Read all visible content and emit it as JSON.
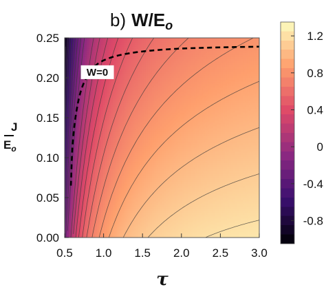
{
  "chart_data": {
    "type": "heatmap",
    "subtype": "contour",
    "title_prefix": "b)",
    "title_main": "W/E",
    "title_sub": "o",
    "xlabel": "τ",
    "ylabel_top": "J",
    "ylabel_bottom_main": "E",
    "ylabel_bottom_sub": "o",
    "xlim": [
      0.5,
      3.0
    ],
    "ylim": [
      0.0,
      0.25
    ],
    "xticks": [
      "0.5",
      "1.0",
      "1.5",
      "2.0",
      "2.5",
      "3.0"
    ],
    "yticks": [
      "0.00",
      "0.05",
      "0.10",
      "0.15",
      "0.20",
      "0.25"
    ],
    "colorbar": {
      "range": [
        -1.05,
        1.35
      ],
      "ticks": [
        "-0.8",
        "-0.4",
        "0",
        "0.4",
        "0.8",
        "1.2"
      ],
      "colormap": "inferno-like",
      "colors": [
        "#000004",
        "#3b0f70",
        "#8c2981",
        "#de4968",
        "#fe9f6d",
        "#fcfdbf"
      ]
    },
    "grid": false,
    "legend": "colorbar-right",
    "annotation": {
      "text": "W=0",
      "x": 0.92,
      "y": 0.207
    },
    "zero_contour": {
      "style": "dashed",
      "points": [
        [
          0.58,
          0.065
        ],
        [
          0.6,
          0.12
        ],
        [
          0.65,
          0.16
        ],
        [
          0.72,
          0.19
        ],
        [
          0.85,
          0.212
        ],
        [
          1.0,
          0.223
        ],
        [
          1.3,
          0.231
        ],
        [
          1.8,
          0.236
        ],
        [
          2.4,
          0.238
        ],
        [
          3.0,
          0.239
        ]
      ]
    },
    "contour_step": 0.1
  }
}
